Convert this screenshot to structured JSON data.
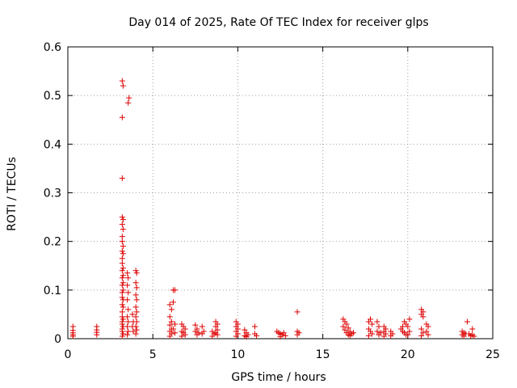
{
  "chart_data": {
    "type": "scatter",
    "title": "Day 014 of 2025, Rate Of TEC Index for receiver glps",
    "xlabel": "GPS time / hours",
    "ylabel": "ROTI / TECUs",
    "xlim": [
      0,
      25
    ],
    "ylim": [
      0,
      0.6
    ],
    "xticks": [
      "0",
      "5",
      "10",
      "15",
      "20",
      "25"
    ],
    "yticks": [
      "0",
      "0.1",
      "0.2",
      "0.3",
      "0.4",
      "0.5",
      "0.6"
    ],
    "xtick_values": [
      0,
      5,
      10,
      15,
      20,
      25
    ],
    "ytick_values": [
      0,
      0.1,
      0.2,
      0.3,
      0.4,
      0.5,
      0.6
    ],
    "grid": true,
    "marker": "+",
    "color": "#dd0000",
    "series": [
      {
        "name": "ROTI",
        "points": [
          [
            0.3,
            0.025
          ],
          [
            0.3,
            0.017
          ],
          [
            0.3,
            0.012
          ],
          [
            0.3,
            0.008
          ],
          [
            0.3,
            0.005
          ],
          [
            1.7,
            0.025
          ],
          [
            1.7,
            0.018
          ],
          [
            1.7,
            0.013
          ],
          [
            1.7,
            0.008
          ],
          [
            3.2,
            0.53
          ],
          [
            3.25,
            0.52
          ],
          [
            3.2,
            0.455
          ],
          [
            3.6,
            0.495
          ],
          [
            3.55,
            0.485
          ],
          [
            3.2,
            0.33
          ],
          [
            3.2,
            0.25
          ],
          [
            3.25,
            0.245
          ],
          [
            3.2,
            0.235
          ],
          [
            3.25,
            0.225
          ],
          [
            3.2,
            0.21
          ],
          [
            3.2,
            0.2
          ],
          [
            3.25,
            0.19
          ],
          [
            3.2,
            0.18
          ],
          [
            3.25,
            0.175
          ],
          [
            3.2,
            0.165
          ],
          [
            3.2,
            0.155
          ],
          [
            3.25,
            0.145
          ],
          [
            3.2,
            0.14
          ],
          [
            3.25,
            0.13
          ],
          [
            3.2,
            0.125
          ],
          [
            3.25,
            0.115
          ],
          [
            3.2,
            0.11
          ],
          [
            3.25,
            0.1
          ],
          [
            3.2,
            0.095
          ],
          [
            3.2,
            0.085
          ],
          [
            3.25,
            0.08
          ],
          [
            3.2,
            0.07
          ],
          [
            3.25,
            0.065
          ],
          [
            3.2,
            0.055
          ],
          [
            3.2,
            0.045
          ],
          [
            3.25,
            0.04
          ],
          [
            3.2,
            0.035
          ],
          [
            3.2,
            0.03
          ],
          [
            3.25,
            0.025
          ],
          [
            3.2,
            0.02
          ],
          [
            3.2,
            0.015
          ],
          [
            3.25,
            0.01
          ],
          [
            3.2,
            0.005
          ],
          [
            3.5,
            0.135
          ],
          [
            3.55,
            0.125
          ],
          [
            3.5,
            0.11
          ],
          [
            3.55,
            0.095
          ],
          [
            3.5,
            0.08
          ],
          [
            3.55,
            0.06
          ],
          [
            3.5,
            0.045
          ],
          [
            3.55,
            0.035
          ],
          [
            3.5,
            0.025
          ],
          [
            3.55,
            0.015
          ],
          [
            3.5,
            0.008
          ],
          [
            3.8,
            0.05
          ],
          [
            3.85,
            0.035
          ],
          [
            3.8,
            0.025
          ],
          [
            3.85,
            0.015
          ],
          [
            4.0,
            0.14
          ],
          [
            4.05,
            0.135
          ],
          [
            4.0,
            0.115
          ],
          [
            4.05,
            0.105
          ],
          [
            4.0,
            0.09
          ],
          [
            4.05,
            0.08
          ],
          [
            4.0,
            0.065
          ],
          [
            4.05,
            0.055
          ],
          [
            4.0,
            0.045
          ],
          [
            4.05,
            0.035
          ],
          [
            4.0,
            0.025
          ],
          [
            4.05,
            0.018
          ],
          [
            4.0,
            0.01
          ],
          [
            6.0,
            0.07
          ],
          [
            6.1,
            0.06
          ],
          [
            6.0,
            0.045
          ],
          [
            6.1,
            0.035
          ],
          [
            6.0,
            0.028
          ],
          [
            6.1,
            0.02
          ],
          [
            6.0,
            0.015
          ],
          [
            6.1,
            0.01
          ],
          [
            6.0,
            0.005
          ],
          [
            6.2,
            0.1
          ],
          [
            6.3,
            0.1
          ],
          [
            6.2,
            0.075
          ],
          [
            6.3,
            0.03
          ],
          [
            6.2,
            0.02
          ],
          [
            6.3,
            0.012
          ],
          [
            6.7,
            0.03
          ],
          [
            6.8,
            0.025
          ],
          [
            6.9,
            0.02
          ],
          [
            6.7,
            0.015
          ],
          [
            6.8,
            0.012
          ],
          [
            6.9,
            0.008
          ],
          [
            6.7,
            0.005
          ],
          [
            7.5,
            0.028
          ],
          [
            7.6,
            0.02
          ],
          [
            7.5,
            0.015
          ],
          [
            7.7,
            0.012
          ],
          [
            7.6,
            0.008
          ],
          [
            7.9,
            0.025
          ],
          [
            8.0,
            0.015
          ],
          [
            7.9,
            0.01
          ],
          [
            8.5,
            0.015
          ],
          [
            8.6,
            0.01
          ],
          [
            8.5,
            0.005
          ],
          [
            8.7,
            0.035
          ],
          [
            8.8,
            0.03
          ],
          [
            8.7,
            0.025
          ],
          [
            8.8,
            0.018
          ],
          [
            8.7,
            0.012
          ],
          [
            8.8,
            0.008
          ],
          [
            9.9,
            0.035
          ],
          [
            10.0,
            0.03
          ],
          [
            9.9,
            0.025
          ],
          [
            10.0,
            0.02
          ],
          [
            9.9,
            0.015
          ],
          [
            10.0,
            0.01
          ],
          [
            9.9,
            0.005
          ],
          [
            10.4,
            0.018
          ],
          [
            10.5,
            0.012
          ],
          [
            10.6,
            0.008
          ],
          [
            10.4,
            0.006
          ],
          [
            10.5,
            0.004
          ],
          [
            11.0,
            0.025
          ],
          [
            11.0,
            0.01
          ],
          [
            11.1,
            0.006
          ],
          [
            12.3,
            0.015
          ],
          [
            12.4,
            0.012
          ],
          [
            12.5,
            0.01
          ],
          [
            12.6,
            0.008
          ],
          [
            12.7,
            0.012
          ],
          [
            12.8,
            0.006
          ],
          [
            12.5,
            0.004
          ],
          [
            13.5,
            0.055
          ],
          [
            13.5,
            0.015
          ],
          [
            13.6,
            0.012
          ],
          [
            13.5,
            0.008
          ],
          [
            16.2,
            0.04
          ],
          [
            16.3,
            0.035
          ],
          [
            16.4,
            0.03
          ],
          [
            16.2,
            0.025
          ],
          [
            16.5,
            0.022
          ],
          [
            16.3,
            0.018
          ],
          [
            16.6,
            0.015
          ],
          [
            16.4,
            0.012
          ],
          [
            16.7,
            0.01
          ],
          [
            16.5,
            0.008
          ],
          [
            16.8,
            0.012
          ],
          [
            16.6,
            0.006
          ],
          [
            17.7,
            0.035
          ],
          [
            17.8,
            0.04
          ],
          [
            17.9,
            0.03
          ],
          [
            17.7,
            0.02
          ],
          [
            17.8,
            0.015
          ],
          [
            17.9,
            0.01
          ],
          [
            17.7,
            0.006
          ],
          [
            18.2,
            0.035
          ],
          [
            18.3,
            0.025
          ],
          [
            18.2,
            0.015
          ],
          [
            18.4,
            0.012
          ],
          [
            18.3,
            0.008
          ],
          [
            18.6,
            0.025
          ],
          [
            18.7,
            0.02
          ],
          [
            18.6,
            0.015
          ],
          [
            18.7,
            0.01
          ],
          [
            18.6,
            0.005
          ],
          [
            19.0,
            0.015
          ],
          [
            19.1,
            0.01
          ],
          [
            19.0,
            0.006
          ],
          [
            19.6,
            0.02
          ],
          [
            19.7,
            0.015
          ],
          [
            19.8,
            0.035
          ],
          [
            19.9,
            0.03
          ],
          [
            19.7,
            0.025
          ],
          [
            19.8,
            0.012
          ],
          [
            19.9,
            0.008
          ],
          [
            20.1,
            0.04
          ],
          [
            20.0,
            0.025
          ],
          [
            20.1,
            0.015
          ],
          [
            20.0,
            0.008
          ],
          [
            20.8,
            0.06
          ],
          [
            20.9,
            0.055
          ],
          [
            20.8,
            0.05
          ],
          [
            20.9,
            0.045
          ],
          [
            20.8,
            0.02
          ],
          [
            20.9,
            0.012
          ],
          [
            20.8,
            0.006
          ],
          [
            21.1,
            0.03
          ],
          [
            21.2,
            0.025
          ],
          [
            21.1,
            0.015
          ],
          [
            21.2,
            0.008
          ],
          [
            23.2,
            0.015
          ],
          [
            23.3,
            0.012
          ],
          [
            23.4,
            0.01
          ],
          [
            23.2,
            0.008
          ],
          [
            23.3,
            0.005
          ],
          [
            23.5,
            0.035
          ],
          [
            23.6,
            0.01
          ],
          [
            23.7,
            0.006
          ],
          [
            23.8,
            0.02
          ],
          [
            23.8,
            0.008
          ],
          [
            23.9,
            0.005
          ]
        ]
      }
    ]
  }
}
